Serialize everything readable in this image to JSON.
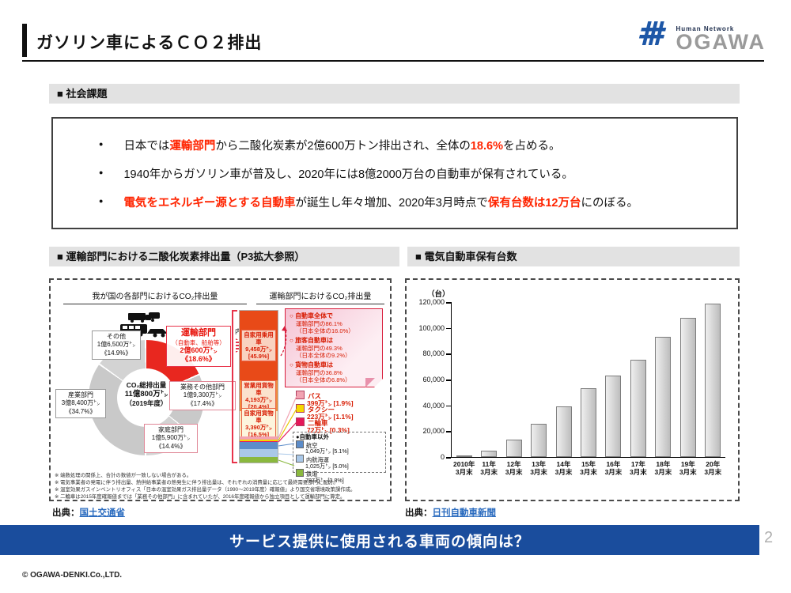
{
  "header": {
    "title": "ガソリン車によるＣＯ２排出",
    "logo": {
      "tagline": "Human Network",
      "name": "OGAWA"
    }
  },
  "social": {
    "heading": "■ 社会課題",
    "b1": {
      "pre": "日本では",
      "red1": "運輸部門",
      "mid": "から二酸化炭素が2億600万トン排出され、全体の",
      "red2": "18.6%",
      "post": "を占める。"
    },
    "b2": "1940年からガソリン車が普及し、2020年には8億2000万台の自動車が保有されている。",
    "b3": {
      "red1": "電気をエネルギー源とする自動車",
      "mid": "が誕生し年々増加、2020年3月時点で",
      "red2": "保有台数は12万台",
      "post": "にのぼる。"
    }
  },
  "sections": {
    "left_heading": "■ 運輸部門における二酸化炭素排出量（P3拡大参照）",
    "right_heading": "■ 電気自動車保有台数"
  },
  "chart_left": {
    "uchiwake": "内訳",
    "callout": [
      {
        "head": "自動車全体で",
        "l1": "運輸部門の86.1%",
        "l2": "（日本全体の16.0%）"
      },
      {
        "head": "旅客自動車は",
        "l1": "運輸部門の49.3%",
        "l2": "（日本全体の9.2%）"
      },
      {
        "head": "貨物自動車は",
        "l1": "運輸部門の36.8%",
        "l2": "（日本全体の6.8%）"
      }
    ],
    "legend_other_label": "●自動車以外",
    "notes": [
      "※ 端数処理の関係上、合計の数値が一致しない場合がある。",
      "※ 電気事業者の発電に伴う排出量、熱供給事業者の熱発生に伴う排出量は、それぞれの消費量に応じて最終需要部門に配分。",
      "※ 温室効果ガスインベントリオフィス「日本の温室効果ガス排出量データ（1990～2019年度）確報値」より国交省環境政策課作成。",
      "※ 二輪車は2015年度確報値までは「業務その他部門」に含まれていたが、2016年度確報値から独立項目として運輸部門に算定。"
    ],
    "source_label": "出典：",
    "source_link": "国土交通省"
  },
  "chart_right": {
    "source_label": "出典：",
    "source_link": "日刊自動車新聞"
  },
  "banner": {
    "text": "サービス提供に使用される車両の傾向は？"
  },
  "page_number": "2",
  "footer": {
    "copyright": "© OGAWA-DENKI.Co.,LTD."
  },
  "colors": {
    "accent_red_text": "#ff2400",
    "banner_blue": "#1a4d9d",
    "link_blue": "#2a6bbf",
    "logo_blue": "#1d57a7",
    "section_gray": "#e2e2e2"
  },
  "chart_data": [
    {
      "type": "pie",
      "subtype": "donut",
      "title": "我が国の各部門におけるCO₂排出量",
      "center_label": [
        "CO₂総排出量",
        "11億800万㌧",
        "（2019年度）"
      ],
      "segments": [
        {
          "name": "運輸部門",
          "sub": "（自動車、船舶等）",
          "value_label": "2億600万㌧",
          "pct_label": "《18.6%》",
          "pct": 18.6,
          "color": "#e8271f"
        },
        {
          "name": "業務その他部門",
          "value_label": "1億9,300万㌧",
          "pct_label": "《17.4%》",
          "pct": 17.4,
          "color": "#c9c9c9"
        },
        {
          "name": "家庭部門",
          "value_label": "1億5,900万㌧",
          "pct_label": "《14.4%》",
          "pct": 14.4,
          "color": "#d3d3d3"
        },
        {
          "name": "産業部門",
          "value_label": "3億8,400万㌧",
          "pct_label": "《34.7%》",
          "pct": 34.7,
          "color": "#c9c9c9"
        },
        {
          "name": "その他",
          "value_label": "1億6,500万㌧",
          "pct_label": "《14.9%》",
          "pct": 14.9,
          "color": "#d3d3d3"
        }
      ]
    },
    {
      "type": "bar",
      "subtype": "stacked-single",
      "title": "運輸部門におけるCO₂排出量",
      "segments": [
        {
          "name": "自家用乗用車",
          "value": "9,458万㌧",
          "pct_label": "[45.9%]",
          "pct": 45.9,
          "color": "#e84a18",
          "label_bg": "#f9d2c0"
        },
        {
          "name": "営業用貨物車",
          "value": "4,193万㌧",
          "pct_label": "[20.4%]",
          "pct": 20.4,
          "color": "#f08b3c",
          "label_bg": "#fbe2cd"
        },
        {
          "name": "自家用貨物車",
          "value": "3,390万㌧",
          "pct_label": "[16.5%]",
          "pct": 16.5,
          "color": "#fbe9c0",
          "label_bg": "#fdf5dd"
        },
        {
          "name": "バス",
          "value": "399万㌧",
          "pct_label": "[1.9%]",
          "pct": 1.9,
          "color": "#f2a3b2"
        },
        {
          "name": "タクシー",
          "value": "223万㌧",
          "pct_label": "[1.1%]",
          "pct": 1.1,
          "color": "#f5d800"
        },
        {
          "name": "二輪車",
          "value": "72万㌧",
          "pct_label": "[0.3%]",
          "pct": 0.3,
          "color": "#e5175a"
        },
        {
          "name": "航空",
          "value": "1,049万㌧",
          "pct_label": "[5.1%]",
          "pct": 5.1,
          "color": "#5c8cc9"
        },
        {
          "name": "内航海運",
          "value": "1,025万㌧",
          "pct_label": "[5.0%]",
          "pct": 5.0,
          "color": "#aac8e8"
        },
        {
          "name": "鉄道",
          "value": "787万㌧",
          "pct_label": "[3.8%]",
          "pct": 3.8,
          "color": "#8ab83e"
        }
      ]
    },
    {
      "type": "bar",
      "title": "電気自動車保有台数",
      "ylabel": "（台）",
      "ylim": [
        0,
        120000
      ],
      "yticks": [
        "120,000",
        "100,000",
        "80,000",
        "60,000",
        "40,000",
        "20,000",
        "0"
      ],
      "categories": [
        "2010年",
        "11年",
        "12年",
        "13年",
        "14年",
        "15年",
        "16年",
        "17年",
        "18年",
        "19年",
        "20年"
      ],
      "category_suffix": "3月末",
      "values": [
        800,
        5000,
        13500,
        25500,
        39000,
        53000,
        63200,
        75300,
        93000,
        107500,
        119000
      ]
    }
  ]
}
